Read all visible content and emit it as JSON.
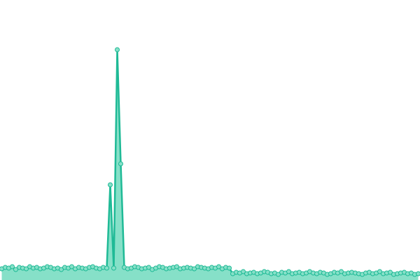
{
  "chart_data": {
    "type": "area",
    "values": [
      16,
      18,
      17,
      19,
      15,
      18,
      17,
      16,
      19,
      17,
      18,
      16,
      17,
      19,
      18,
      16,
      17,
      15,
      18,
      17,
      19,
      16,
      18,
      17,
      16,
      18,
      19,
      17,
      16,
      18,
      17,
      136,
      17,
      329,
      166,
      18,
      16,
      17,
      19,
      18,
      16,
      17,
      18,
      15,
      17,
      19,
      18,
      16,
      17,
      18,
      19,
      16,
      17,
      18,
      17,
      16,
      19,
      18,
      17,
      16,
      18,
      17,
      19,
      16,
      18,
      17,
      9,
      11,
      10,
      12,
      9,
      10,
      11,
      9,
      10,
      12,
      11,
      9,
      10,
      8,
      11,
      10,
      12,
      9,
      10,
      11,
      9,
      10,
      12,
      10,
      9,
      11,
      10,
      8,
      9,
      11,
      10,
      12,
      9,
      10,
      11,
      10,
      9,
      8,
      10,
      11,
      9,
      10,
      12,
      9,
      10,
      11,
      8,
      9,
      10,
      11,
      9,
      10,
      8,
      9
    ],
    "color": "#1fba96",
    "fill_color": "#86e0c8",
    "ylim": [
      0,
      340
    ]
  }
}
